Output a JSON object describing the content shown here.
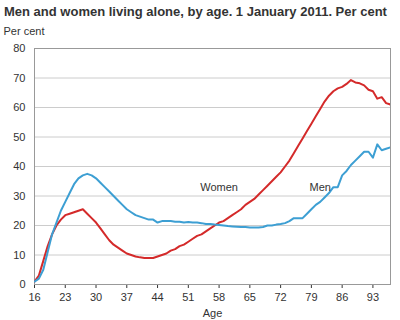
{
  "chart_data": {
    "type": "line",
    "title": "Men and women living alone, by age. 1 January 2011. Per cent",
    "x_label": "Age",
    "y_label": "Per cent",
    "x": [
      16,
      17,
      18,
      19,
      20,
      21,
      22,
      23,
      24,
      25,
      26,
      27,
      28,
      29,
      30,
      31,
      32,
      33,
      34,
      35,
      36,
      37,
      38,
      39,
      40,
      41,
      42,
      43,
      44,
      45,
      46,
      47,
      48,
      49,
      50,
      51,
      52,
      53,
      54,
      55,
      56,
      57,
      58,
      59,
      60,
      61,
      62,
      63,
      64,
      65,
      66,
      67,
      68,
      69,
      70,
      71,
      72,
      73,
      74,
      75,
      76,
      77,
      78,
      79,
      80,
      81,
      82,
      83,
      84,
      85,
      86,
      87,
      88,
      89,
      90,
      91,
      92,
      93,
      94,
      95,
      96,
      97
    ],
    "series": [
      {
        "name": "Women",
        "color": "#d42a2a",
        "values": [
          1,
          3,
          8,
          13,
          17,
          20,
          22,
          23.5,
          24,
          24.5,
          25,
          25.5,
          24,
          22.5,
          21,
          19,
          17,
          15,
          13.5,
          12.5,
          11.5,
          10.5,
          10,
          9.5,
          9.2,
          9,
          9,
          9,
          9.5,
          10,
          10.5,
          11.5,
          12,
          13,
          13.5,
          14.5,
          15.5,
          16.5,
          17,
          18,
          19,
          20,
          21,
          21.5,
          22.5,
          23.5,
          24.5,
          25.5,
          27,
          28,
          29,
          30.5,
          32,
          33.5,
          35,
          36.5,
          38,
          40,
          42,
          44.5,
          47,
          49.5,
          52,
          54.5,
          57,
          59.5,
          62,
          64,
          65.5,
          66.5,
          67,
          68,
          69.3,
          68.5,
          68.2,
          67.5,
          66,
          65.5,
          63,
          63.5,
          61.5,
          61
        ]
      },
      {
        "name": "Men",
        "color": "#3d9fd3",
        "values": [
          1,
          2,
          5,
          11,
          17,
          21,
          25,
          28,
          31,
          34,
          36,
          37,
          37.5,
          37,
          36,
          34.5,
          33,
          31.5,
          30,
          28.5,
          27,
          25.5,
          24.5,
          23.5,
          23,
          22.5,
          22,
          22,
          21,
          21.5,
          21.5,
          21.5,
          21.3,
          21.3,
          21,
          21.2,
          21,
          21,
          20.8,
          20.5,
          20.5,
          20.3,
          20.2,
          20,
          19.8,
          19.7,
          19.6,
          19.5,
          19.5,
          19.3,
          19.3,
          19.3,
          19.5,
          20,
          20,
          20.3,
          20.5,
          20.8,
          21.5,
          22.5,
          22.5,
          22.5,
          24,
          25.5,
          27,
          28,
          29.5,
          31,
          33,
          33,
          37,
          38.5,
          40.5,
          42,
          43.5,
          45,
          45,
          43,
          47.5,
          45.5,
          46,
          46.5
        ]
      }
    ],
    "annotations": [
      {
        "text": "Women",
        "x": 58,
        "y": 33
      },
      {
        "text": "Men",
        "x": 81,
        "y": 33
      }
    ],
    "xlim": [
      16,
      97
    ],
    "xticks": [
      16,
      23,
      30,
      37,
      44,
      51,
      58,
      65,
      72,
      79,
      86,
      93
    ],
    "ylim": [
      0,
      80
    ],
    "yticks": [
      0,
      10,
      20,
      30,
      40,
      50,
      60,
      70,
      80
    ],
    "grid": true
  }
}
